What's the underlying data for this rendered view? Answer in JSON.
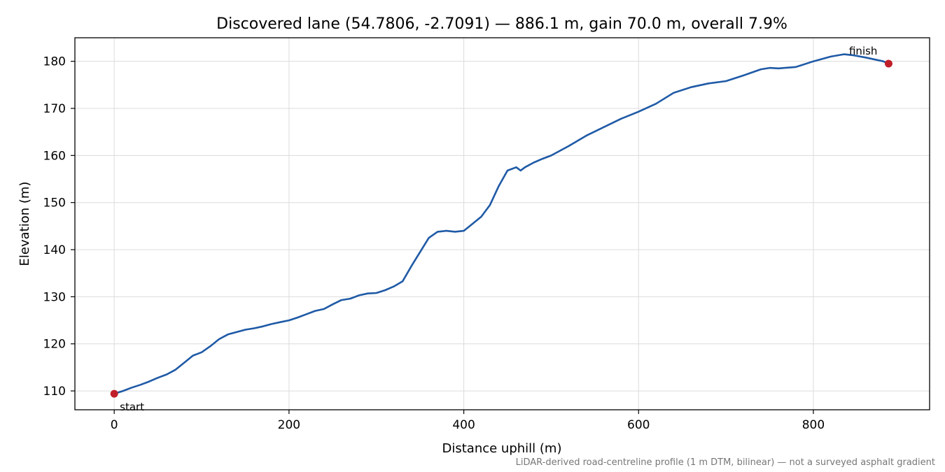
{
  "chart_data": {
    "type": "line",
    "title": "Discovered lane (54.7806, -2.7091) — 886.1 m, gain 70.0 m, overall 7.9%",
    "xlabel": "Distance uphill (m)",
    "ylabel": "Elevation (m)",
    "xlim": [
      -45,
      933
    ],
    "ylim": [
      106,
      185
    ],
    "xticks": [
      0,
      200,
      400,
      600,
      800
    ],
    "yticks": [
      110,
      120,
      130,
      140,
      150,
      160,
      170,
      180
    ],
    "grid": true,
    "footnote": "LiDAR-derived road-centreline profile (1 m DTM, bilinear) — not a surveyed asphalt gradient",
    "line_color": "#1f5aa6",
    "marker_color": "#c01f2a",
    "series": [
      {
        "x": [
          0,
          10,
          20,
          30,
          40,
          50,
          60,
          70,
          80,
          90,
          100,
          110,
          120,
          130,
          140,
          150,
          160,
          170,
          180,
          190,
          200,
          210,
          220,
          230,
          240,
          250,
          260,
          270,
          280,
          290,
          300,
          310,
          320,
          330,
          340,
          350,
          360,
          370,
          380,
          390,
          400,
          410,
          420,
          430,
          440,
          450,
          460,
          465,
          470,
          480,
          490,
          500,
          520,
          540,
          560,
          580,
          600,
          620,
          640,
          660,
          680,
          700,
          720,
          740,
          750,
          760,
          780,
          800,
          820,
          835,
          845,
          860,
          880,
          886.1
        ],
        "y": [
          109.4,
          110.0,
          110.7,
          111.3,
          112.0,
          112.8,
          113.5,
          114.5,
          116.0,
          117.5,
          118.2,
          119.5,
          121.0,
          122.0,
          122.5,
          123.0,
          123.3,
          123.7,
          124.2,
          124.6,
          125.0,
          125.6,
          126.3,
          127.0,
          127.4,
          128.4,
          129.3,
          129.6,
          130.3,
          130.7,
          130.8,
          131.4,
          132.2,
          133.3,
          136.5,
          139.5,
          142.5,
          143.8,
          144.0,
          143.8,
          144.0,
          145.5,
          147.0,
          149.5,
          153.5,
          156.8,
          157.5,
          156.8,
          157.5,
          158.5,
          159.3,
          160.0,
          162.0,
          164.2,
          166.0,
          167.8,
          169.3,
          171.0,
          173.3,
          174.5,
          175.3,
          175.8,
          177.0,
          178.3,
          178.6,
          178.5,
          178.8,
          180.0,
          181.0,
          181.5,
          181.3,
          180.8,
          180.0,
          179.5
        ]
      }
    ],
    "annotations": [
      {
        "text": "start",
        "x": 0,
        "y": 109.4
      },
      {
        "text": "finish",
        "x": 886.1,
        "y": 179.5
      }
    ]
  }
}
